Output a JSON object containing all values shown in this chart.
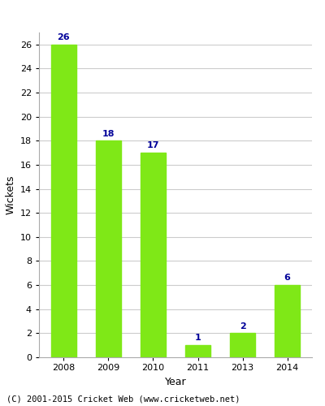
{
  "categories": [
    "2008",
    "2009",
    "2010",
    "2011",
    "2013",
    "2014"
  ],
  "values": [
    26,
    18,
    17,
    1,
    2,
    6
  ],
  "bar_color": "#7FE817",
  "bar_edge_color": "#7FE817",
  "value_label_color": "#000099",
  "xlabel": "Year",
  "ylabel": "Wickets",
  "ylim": [
    0,
    27
  ],
  "yticks": [
    0,
    2,
    4,
    6,
    8,
    10,
    12,
    14,
    16,
    18,
    20,
    22,
    24,
    26
  ],
  "grid_color": "#cccccc",
  "background_color": "#ffffff",
  "footer_text": "(C) 2001-2015 Cricket Web (www.cricketweb.net)",
  "value_fontsize": 8,
  "axis_label_fontsize": 9,
  "tick_fontsize": 8,
  "footer_fontsize": 7.5,
  "bar_width": 0.55
}
